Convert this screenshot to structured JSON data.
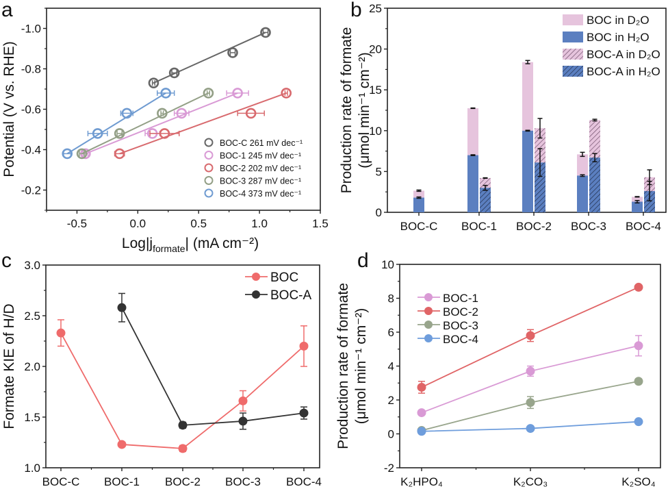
{
  "chart_data": [
    {
      "panel": "a",
      "type": "scatter",
      "xlabel": {
        "pre": "Log|j",
        "sub": "formate",
        "post": "| (mA cm⁻²)"
      },
      "ylabel": "Potential (V vs. RHE)",
      "xlim": [
        -0.75,
        1.5
      ],
      "ylim": [
        -0.1,
        -1.1
      ],
      "xticks": [
        -0.5,
        0.0,
        0.5,
        1.0,
        1.5
      ],
      "xtick_labels": [
        "-0.5",
        "0.0",
        "0.5",
        "1.0",
        "1.5"
      ],
      "yticks": [
        -1.0,
        -0.8,
        -0.6,
        -0.4,
        -0.2
      ],
      "ytick_labels": [
        "-1.0",
        "-0.8",
        "-0.6",
        "-0.4",
        "-0.2"
      ],
      "legend_position": "bottom-right",
      "series": [
        {
          "name": "BOC-C",
          "legend": "BOC-C 261 mV dec⁻¹",
          "color": "#666666",
          "x": [
            0.13,
            0.3,
            0.78,
            1.05
          ],
          "y": [
            -0.73,
            -0.78,
            -0.88,
            -0.98
          ],
          "xerr": [
            0.01,
            0.02,
            0.02,
            0.02
          ]
        },
        {
          "name": "BOC-1",
          "legend": "BOC-1  245 mV dec⁻¹",
          "color": "#d99ad5",
          "x": [
            -0.43,
            0.12,
            0.36,
            0.82
          ],
          "y": [
            -0.38,
            -0.48,
            -0.58,
            -0.68
          ],
          "xerr": [
            0.02,
            0.06,
            0.06,
            0.09
          ]
        },
        {
          "name": "BOC-2",
          "legend": "BOC-2  202 mV dec⁻¹",
          "color": "#d86a6e",
          "x": [
            -0.15,
            0.22,
            0.93,
            1.22
          ],
          "y": [
            -0.38,
            -0.48,
            -0.58,
            -0.68
          ],
          "xerr": [
            0.04,
            0.12,
            0.11,
            0.01
          ]
        },
        {
          "name": "BOC-3",
          "legend": "BOC-3  287 mV dec⁻¹",
          "color": "#939f86",
          "x": [
            -0.46,
            -0.15,
            0.2,
            0.58
          ],
          "y": [
            -0.38,
            -0.48,
            -0.58,
            -0.68
          ],
          "xerr": [
            0.02,
            0.02,
            0.01,
            0.01
          ]
        },
        {
          "name": "BOC-4",
          "legend": "BOC-4  373 mV dec⁻¹",
          "color": "#6f9bd1",
          "x": [
            -0.58,
            -0.33,
            -0.09,
            0.23
          ],
          "y": [
            -0.38,
            -0.48,
            -0.58,
            -0.68
          ],
          "xerr": [
            0.03,
            0.08,
            0.05,
            0.07
          ]
        }
      ]
    },
    {
      "panel": "b",
      "type": "bar",
      "ylabel": [
        "Production rate of formate",
        "(μmol min⁻¹ cm⁻²)"
      ],
      "ylim": [
        0,
        25
      ],
      "yticks": [
        0,
        5,
        10,
        15,
        20,
        25
      ],
      "ytick_labels": [
        "0",
        "5",
        "10",
        "15",
        "20",
        "25"
      ],
      "categories": [
        "BOC-C",
        "BOC-1",
        "BOC-2",
        "BOC-3",
        "BOC-4"
      ],
      "legend_position": "top-right",
      "legend": [
        "BOC in D₂O",
        "BOC in H₂O",
        "BOC-A in D₂O",
        "BOC-A in H₂O"
      ],
      "colors": {
        "d2o": "#e6c4dd",
        "h2o": "#5b7fc0",
        "hatch": "#2a3550"
      },
      "series": [
        {
          "name": "BOC in H₂O",
          "values": [
            1.8,
            7.0,
            10.0,
            4.5,
            1.3
          ],
          "err": [
            0.08,
            0.05,
            0.05,
            0.1,
            0.15
          ]
        },
        {
          "name": "BOC in D₂O",
          "stacked_total": [
            2.65,
            12.75,
            18.4,
            7.1,
            1.9
          ],
          "err": [
            0.08,
            0.03,
            0.2,
            0.25,
            0.03
          ]
        },
        {
          "name": "BOC-A in H₂O",
          "values": [
            null,
            3.0,
            6.1,
            6.7,
            2.6
          ],
          "err": [
            null,
            0.3,
            1.7,
            0.5,
            1.2
          ]
        },
        {
          "name": "BOC-A in D₂O",
          "stacked_total": [
            null,
            4.2,
            10.3,
            11.3,
            4.3
          ],
          "err": [
            null,
            0.03,
            1.2,
            0.1,
            0.9
          ]
        }
      ]
    },
    {
      "panel": "c",
      "type": "line",
      "ylabel": "Formate KIE of H/D",
      "ylim": [
        1.0,
        3.0
      ],
      "yticks": [
        1.0,
        1.5,
        2.0,
        2.5,
        3.0
      ],
      "ytick_labels": [
        "1.0",
        "1.5",
        "2.0",
        "2.5",
        "3.0"
      ],
      "categories": [
        "BOC-C",
        "BOC-1",
        "BOC-2",
        "BOC-3",
        "BOC-4"
      ],
      "legend_position": "top-right",
      "series": [
        {
          "name": "BOC",
          "color": "#ef6b6b",
          "values": [
            2.33,
            1.23,
            1.19,
            1.66,
            2.2
          ],
          "err": [
            0.13,
            0.02,
            0.03,
            0.1,
            0.2
          ]
        },
        {
          "name": "BOC-A",
          "color": "#333333",
          "values": [
            null,
            2.58,
            1.42,
            1.46,
            1.54
          ],
          "err": [
            null,
            0.14,
            0.03,
            0.08,
            0.06
          ]
        }
      ]
    },
    {
      "panel": "d",
      "type": "line",
      "ylabel": [
        "Production rate of formate",
        "(μmol min⁻¹ cm⁻²)"
      ],
      "ylim": [
        -2,
        10
      ],
      "yticks": [
        -2,
        0,
        2,
        4,
        6,
        8,
        10
      ],
      "ytick_labels": [
        "-2",
        "0",
        "2",
        "4",
        "6",
        "8",
        "10"
      ],
      "categories": [
        "K₂HPO₄",
        "K₂CO₃",
        "K₂SO₄"
      ],
      "legend_position": "top-left",
      "series": [
        {
          "name": "BOC-1",
          "color": "#d99ad5",
          "values": [
            1.25,
            3.7,
            5.2
          ],
          "err": [
            0.1,
            0.3,
            0.6
          ]
        },
        {
          "name": "BOC-2",
          "color": "#e06466",
          "values": [
            2.75,
            5.8,
            8.65
          ],
          "err": [
            0.35,
            0.35,
            0.05
          ]
        },
        {
          "name": "BOC-3",
          "color": "#98a58c",
          "values": [
            0.2,
            1.85,
            3.1
          ],
          "err": [
            0.05,
            0.35,
            0.05
          ]
        },
        {
          "name": "BOC-4",
          "color": "#6e9ddc",
          "values": [
            0.15,
            0.32,
            0.72
          ],
          "err": [
            0.03,
            0.03,
            0.03
          ]
        }
      ]
    }
  ],
  "panel_labels": [
    "a",
    "b",
    "c",
    "d"
  ]
}
